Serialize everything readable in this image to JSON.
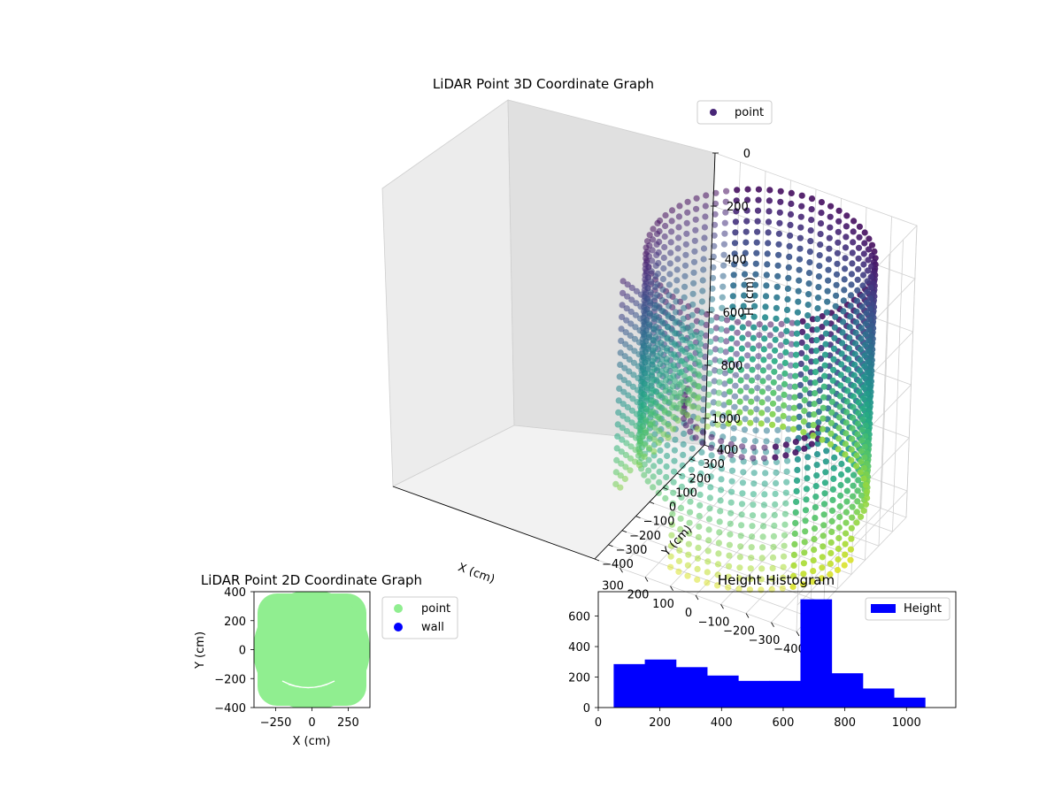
{
  "chart_data": [
    {
      "type": "scatter",
      "projection": "3d",
      "title": "LiDAR Point 3D Coordinate Graph",
      "xlabel": "X (cm)",
      "ylabel": "Y (cm)",
      "zlabel": "H (cm)",
      "xlim": [
        -400,
        400
      ],
      "ylim": [
        -400,
        400
      ],
      "zlim": [
        1100,
        0
      ],
      "x_ticks": [
        -400,
        -300,
        -200,
        -100,
        0,
        100,
        200,
        300
      ],
      "y_ticks": [
        -400,
        -300,
        -200,
        -100,
        0,
        100,
        200,
        300,
        400
      ],
      "z_ticks": [
        0,
        200,
        400,
        600,
        800,
        1000
      ],
      "z_inverted": true,
      "colormap": "viridis",
      "legend": {
        "position": "top-right",
        "entries": [
          {
            "label": "point",
            "color": "#482677"
          }
        ]
      },
      "shape": "cylinder of points (radius about 400 cm) spanning H from about 50 to about 1050 cm, with a partial inner ring and a sloping wall on the right side"
    },
    {
      "type": "scatter",
      "title": "LiDAR Point 2D Coordinate Graph",
      "xlabel": "X (cm)",
      "ylabel": "Y (cm)",
      "xlim": [
        -400,
        400
      ],
      "ylim": [
        -400,
        400
      ],
      "x_ticks": [
        -250,
        0,
        250
      ],
      "y_ticks": [
        -400,
        -200,
        0,
        200,
        400
      ],
      "series": [
        {
          "name": "point",
          "color": "#90ee90"
        },
        {
          "name": "wall",
          "color": "#0000ff"
        }
      ],
      "legend": "outside-right"
    },
    {
      "type": "bar",
      "title": "Height Histogram",
      "xlim": [
        0,
        1160
      ],
      "ylim": [
        0,
        760
      ],
      "x_ticks": [
        0,
        200,
        400,
        600,
        800,
        1000
      ],
      "y_ticks": [
        0,
        200,
        400,
        600
      ],
      "color": "#0000ff",
      "bin_edges": [
        50,
        151,
        252,
        353,
        454,
        555,
        656,
        757,
        858,
        959,
        1060
      ],
      "values": [
        285,
        315,
        265,
        210,
        175,
        175,
        710,
        225,
        125,
        65
      ],
      "series": [
        {
          "name": "Height"
        }
      ],
      "legend": "top-right"
    }
  ]
}
